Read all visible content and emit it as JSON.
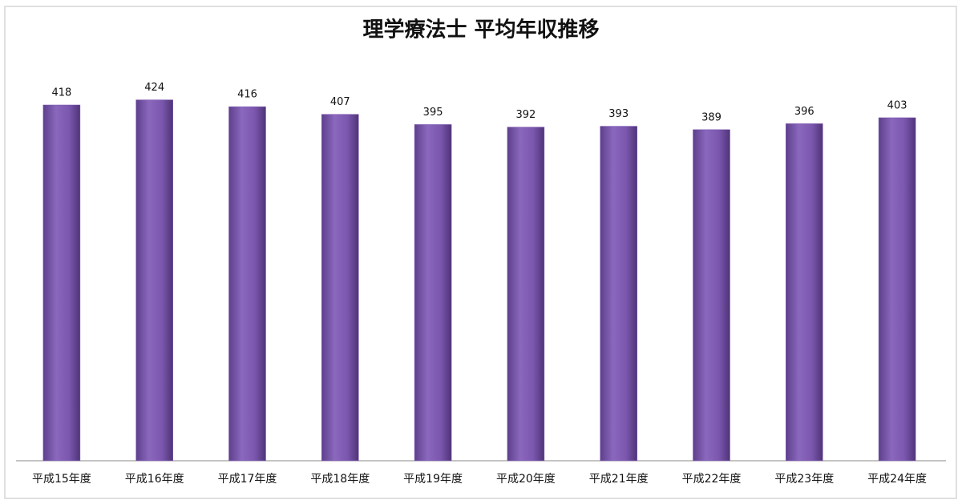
{
  "chart_data": {
    "type": "bar",
    "title": "理学療法士 平均年収推移",
    "categories": [
      "平成15年度",
      "平成16年度",
      "平成17年度",
      "平成18年度",
      "平成19年度",
      "平成20年度",
      "平成21年度",
      "平成22年度",
      "平成23年度",
      "平成24年度"
    ],
    "values": [
      418,
      424,
      416,
      407,
      395,
      392,
      393,
      389,
      396,
      403
    ],
    "color": "#7d58b0",
    "ylim": [
      0,
      450
    ]
  }
}
